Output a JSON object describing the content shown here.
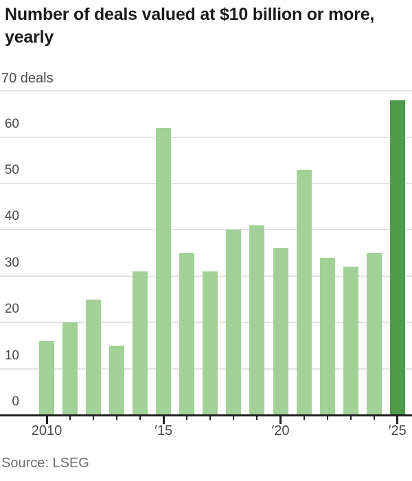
{
  "header": {
    "title": "Number of deals valued at $10 billion or more, yearly"
  },
  "source": {
    "label": "Source: LSEG"
  },
  "chart_data": {
    "type": "bar",
    "title": "Number of deals valued at $10 billion or more, yearly",
    "categories": [
      "2010",
      "2011",
      "2012",
      "2013",
      "2014",
      "2015",
      "2016",
      "2017",
      "2018",
      "2019",
      "2020",
      "2021",
      "2022",
      "2023",
      "2024",
      "2025"
    ],
    "values": [
      16,
      20,
      25,
      15,
      31,
      62,
      35,
      31,
      40,
      41,
      36,
      53,
      34,
      32,
      35,
      68
    ],
    "ylim": [
      0,
      70
    ],
    "y_ticks": [
      0,
      10,
      20,
      30,
      40,
      50,
      60,
      70
    ],
    "y_axis_top_label": "70 deals",
    "x_major_ticks": [
      {
        "index": 0,
        "label": "2010"
      },
      {
        "index": 5,
        "label": "′15"
      },
      {
        "index": 10,
        "label": "′20"
      },
      {
        "index": 15,
        "label": "′25"
      }
    ],
    "grid": true,
    "legend": "none",
    "colors": {
      "bar": "#a2d197",
      "highlight": "#4e9b49"
    },
    "highlight_index": 15,
    "source": "Source: LSEG"
  }
}
